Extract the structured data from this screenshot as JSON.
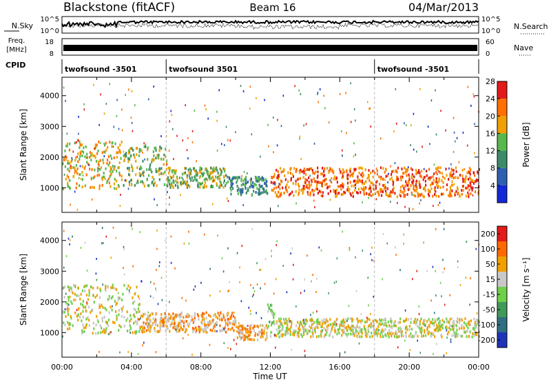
{
  "header": {
    "station": "Blackstone (fitACF)",
    "beam": "Beam 16",
    "date": "04/Mar/2013"
  },
  "strip_labels": {
    "nsky": "N.Sky",
    "nsky_top": "10^5",
    "nsky_bottom": "10^0",
    "nsearch": "N.Search",
    "nsearch_top": "10^5",
    "nsearch_bottom": "10^0",
    "freq_line1": "Freq.",
    "freq_line2": "[MHz]",
    "freq_top": "18",
    "freq_bottom": "8",
    "nave": "Nave",
    "nave_top": "60",
    "nave_bottom": "0",
    "cpid": "CPID"
  },
  "cpid_segments": [
    {
      "label": "twofsound -3501",
      "start_hour": 0
    },
    {
      "label": "twofsound 3501",
      "start_hour": 6
    },
    {
      "label": "twofsound -3501",
      "start_hour": 18
    }
  ],
  "chart_data": [
    {
      "type": "heatmap",
      "name": "power",
      "ylabel": "Slant Range [km]",
      "xlim": [
        0,
        24
      ],
      "ylim": [
        200,
        4600
      ],
      "yticks": [
        "1000",
        "2000",
        "3000",
        "4000"
      ],
      "colorbar": {
        "label": "Power [dB]",
        "ticks": [
          "4",
          "8",
          "12",
          "16",
          "20",
          "24",
          "28"
        ],
        "colors": [
          "#1428d8",
          "#2f5fb0",
          "#3d8a6a",
          "#58b84e",
          "#f0a000",
          "#ff7000",
          "#e21a1a"
        ]
      },
      "echo_regions": [
        {
          "t0": 0.0,
          "t1": 3.5,
          "r0": 1000,
          "r1": 2600,
          "level": 4
        },
        {
          "t0": 3.5,
          "t1": 6.0,
          "r0": 1100,
          "r1": 2400,
          "level": 3
        },
        {
          "t0": 6.0,
          "t1": 9.5,
          "r0": 1050,
          "r1": 1700,
          "level": 3
        },
        {
          "t0": 9.5,
          "t1": 11.8,
          "r0": 800,
          "r1": 1400,
          "level": 2
        },
        {
          "t0": 12.0,
          "t1": 24.0,
          "r0": 750,
          "r1": 1700,
          "level": 5
        }
      ]
    },
    {
      "type": "heatmap",
      "name": "velocity",
      "ylabel": "Slant Range [km]",
      "xlabel": "Time UT",
      "xlim": [
        0,
        24
      ],
      "ylim": [
        200,
        4600
      ],
      "xticks": [
        "00:00",
        "04:00",
        "08:00",
        "12:00",
        "16:00",
        "20:00",
        "00:00"
      ],
      "yticks": [
        "1000",
        "2000",
        "3000",
        "4000"
      ],
      "colorbar": {
        "label": "Velocity [m s⁻¹]",
        "ticks": [
          "200",
          "100",
          "50",
          "15",
          "-15",
          "-50",
          "-100",
          "-200"
        ],
        "colors": [
          "#2034b8",
          "#2f6f80",
          "#3f9a5a",
          "#6fd04a",
          "#c8c8c8",
          "#f0a000",
          "#ff6a00",
          "#e21a1a"
        ]
      },
      "echo_regions": [
        {
          "t0": 0.0,
          "t1": 4.5,
          "r0": 1000,
          "r1": 2600,
          "level": 4
        },
        {
          "t0": 4.5,
          "t1": 10.0,
          "r0": 1050,
          "r1": 1700,
          "level": 5
        },
        {
          "t0": 10.0,
          "t1": 11.8,
          "r0": 800,
          "r1": 1300,
          "level": 5
        },
        {
          "t0": 11.8,
          "t1": 12.3,
          "r0": 900,
          "r1": 2000,
          "level": 3
        },
        {
          "t0": 12.3,
          "t1": 24.0,
          "r0": 900,
          "r1": 1500,
          "level": 4
        }
      ]
    }
  ]
}
